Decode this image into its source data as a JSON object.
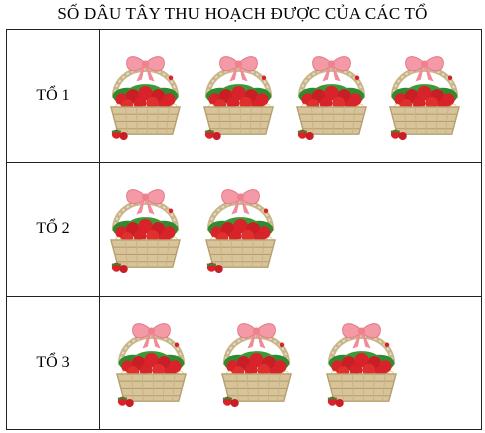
{
  "title": "SỐ DÂU TÂY THU HOẠCH ĐƯỢC CỦA CÁC TỔ",
  "rows": [
    {
      "label": "TỔ 1",
      "basket_count": 4
    },
    {
      "label": "TỔ 2",
      "basket_count": 2
    },
    {
      "label": "TỔ 3",
      "basket_count": 3
    }
  ],
  "icon": "strawberry-basket-icon",
  "colors": {
    "bow": "#f49aa6",
    "basket": "#d8c49a",
    "strawberry": "#d8232a",
    "leaf": "#2e8b2e",
    "flower": "#ffffff"
  }
}
